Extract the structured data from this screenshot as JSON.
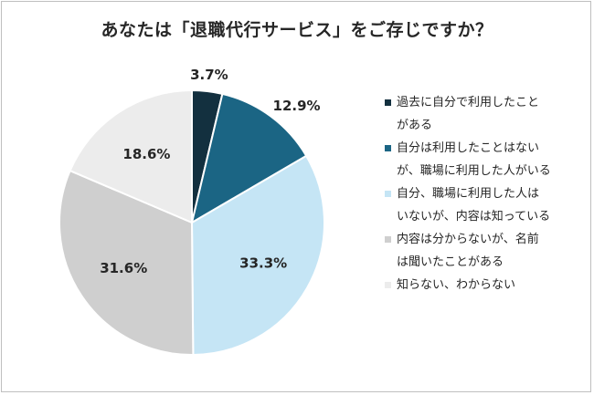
{
  "title": "あなたは「退職代行サービス」をご存じですか？",
  "chart_data": {
    "type": "pie",
    "start_angle_deg": 0,
    "direction": "clockwise",
    "legend_position": "right",
    "slices": [
      {
        "label": "過去に自分で利用したことがある",
        "value": 3.7,
        "value_label": "3.7%",
        "color": "#13303f"
      },
      {
        "label": "自分は利用したことはないが、職場に利用した人がいる",
        "value": 12.9,
        "value_label": "12.9%",
        "color": "#1b6584"
      },
      {
        "label": "自分、職場に利用した人はいないが、内容は知っている",
        "value": 33.3,
        "value_label": "33.3%",
        "color": "#c5e5f5"
      },
      {
        "label": "内容は分からないが、名前は聞いたことがある",
        "value": 31.6,
        "value_label": "31.6%",
        "color": "#cfcfcf"
      },
      {
        "label": "知らない、わからない",
        "value": 18.6,
        "value_label": "18.6%",
        "color": "#ececec"
      }
    ]
  },
  "legend": [
    {
      "text": "過去に自分で利用したこと\nがある"
    },
    {
      "text": "自分は利用したことはない\nが、職場に利用した人がいる"
    },
    {
      "text": "自分、職場に利用した人は\nいないが、内容は知っている"
    },
    {
      "text": "内容は分からないが、名前\nは聞いたことがある"
    },
    {
      "text": "知らない、わからない"
    }
  ]
}
